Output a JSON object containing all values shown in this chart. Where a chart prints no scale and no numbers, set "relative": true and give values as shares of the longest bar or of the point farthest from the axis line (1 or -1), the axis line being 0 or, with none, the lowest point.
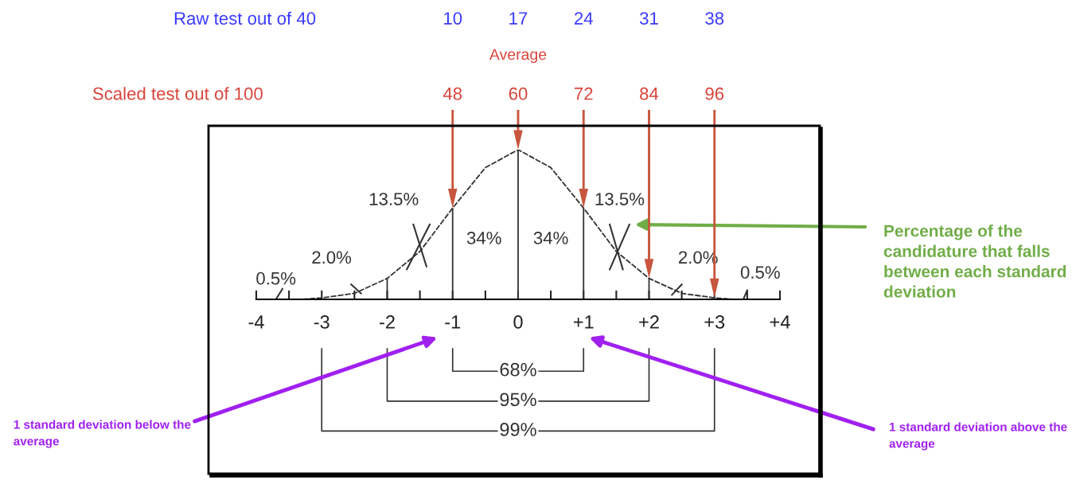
{
  "chart_data": {
    "type": "line",
    "relative": true,
    "x": [
      -3.3,
      -3,
      -2.5,
      -2,
      -1.5,
      -1,
      -0.5,
      0,
      0.5,
      1,
      1.5,
      2,
      2.5,
      3,
      3.3
    ],
    "series": [
      {
        "color": "#333333",
        "values": [
          0,
          0.01,
          0.04,
          0.14,
          0.32,
          0.61,
          0.88,
          1,
          0.88,
          0.61,
          0.32,
          0.14,
          0.04,
          0.01,
          0
        ]
      }
    ],
    "line_style": "dashed",
    "marker": "none",
    "grid": false,
    "xlim": [
      -4,
      4
    ],
    "xticks": [
      -4,
      {
        "value": -3.5,
        "label": null
      },
      -3,
      {
        "value": -2.5,
        "label": null
      },
      -2,
      {
        "value": -1.5,
        "label": null
      },
      -1,
      {
        "value": -0.5,
        "label": null
      },
      0,
      {
        "value": 0.5,
        "label": null
      },
      {
        "value": 1,
        "label": "+1"
      },
      {
        "value": 1.5,
        "label": null
      },
      {
        "value": 2,
        "label": "+2"
      },
      {
        "value": 2.5,
        "label": null
      },
      {
        "value": 3,
        "label": "+3"
      },
      {
        "value": 3.5,
        "label": null
      },
      {
        "value": 4,
        "label": "+4"
      }
    ],
    "x2label": "Scaled test out of 100",
    "x2lim": [
      12,
      108
    ],
    "x2ticks": [
      48,
      60,
      72,
      84,
      96
    ],
    "ref_lines": [
      {
        "axis": "x",
        "value": -2,
        "color": "#333333"
      },
      {
        "axis": "x",
        "value": -1,
        "color": "#333333"
      },
      {
        "axis": "x",
        "value": 0,
        "color": "#333333"
      },
      {
        "axis": "x",
        "value": 1,
        "color": "#333333"
      },
      {
        "axis": "x",
        "value": 2,
        "color": "#333333"
      }
    ],
    "annotations": [
      "Raw test out of 40",
      "10",
      "17",
      "24",
      "31",
      "38",
      "Average",
      "0.5%",
      "2.0%",
      "13.5%",
      "34%",
      "34%",
      "13.5%",
      "2.0%",
      "0.5%",
      "68%",
      "95%",
      "99%",
      "Percentage of the candidature that falls between each standard deviation",
      "1 standard deviation below the average",
      "1 standard deviation above the average"
    ]
  }
}
